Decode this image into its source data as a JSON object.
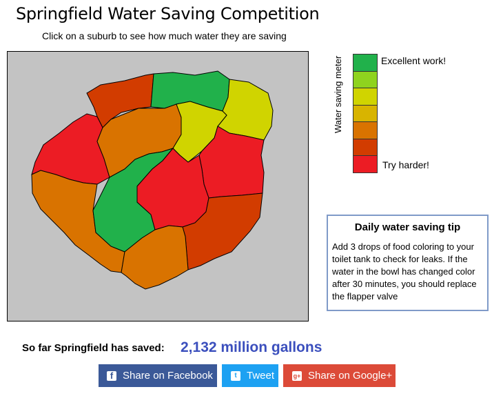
{
  "header": {
    "title": "Springfield Water Saving Competition",
    "subtitle": "Click on a suburb to see how much water they are saving"
  },
  "meter": {
    "label": "Water saving meter",
    "top_label": "Excellent work!",
    "bottom_label": "Try harder!",
    "levels": [
      "#21b14b",
      "#8fd31e",
      "#d0d400",
      "#d8b400",
      "#d97300",
      "#d23c00",
      "#ec1c24"
    ]
  },
  "tip": {
    "title": "Daily water saving tip",
    "text": "Add 3 drops of food coloring to your toilet tank to check for leaks. If the water in the bowl has changed color after 30 minutes, you should replace the flapper valve"
  },
  "totals": {
    "label": "So far Springfield has saved:",
    "value": "2,132 million gallons"
  },
  "share": {
    "facebook": "Share on Facebook",
    "twitter": "Tweet",
    "google": "Share on Google+"
  },
  "map": {
    "background": "#c3c3c3",
    "suburbs": [
      {
        "id": "north-west",
        "color": "#d23c00"
      },
      {
        "id": "north",
        "color": "#21b14b"
      },
      {
        "id": "north-east",
        "color": "#d0d400"
      },
      {
        "id": "west",
        "color": "#ec1c24"
      },
      {
        "id": "center-north",
        "color": "#d97300"
      },
      {
        "id": "center-east",
        "color": "#d0d400"
      },
      {
        "id": "east",
        "color": "#ec1c24"
      },
      {
        "id": "south-west",
        "color": "#d97300"
      },
      {
        "id": "center-west",
        "color": "#21b14b"
      },
      {
        "id": "center",
        "color": "#ec1c24"
      },
      {
        "id": "south-east",
        "color": "#d23c00"
      },
      {
        "id": "south",
        "color": "#d97300"
      }
    ]
  }
}
